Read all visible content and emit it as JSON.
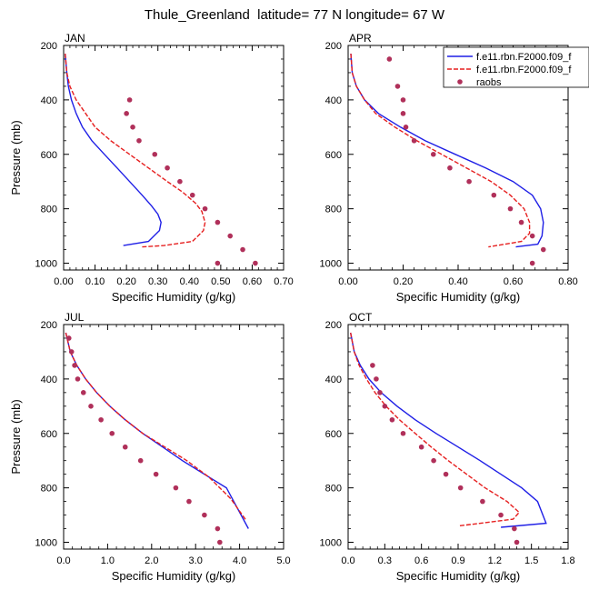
{
  "figure": {
    "title": "Thule_Greenland  latitude= 77 N longitude= 67 W",
    "colors": {
      "model_1": "#1f1fe6",
      "model_2": "#e61f1f",
      "raobs": "#b0305a"
    }
  },
  "chart_data": [
    {
      "type": "line",
      "panel_label": "JAN",
      "xlabel": "Specific Humidity (g/kg)",
      "ylabel": "Pressure (mb)",
      "xlim": [
        0,
        0.7
      ],
      "xticks": [
        "0.00",
        "0.10",
        "0.20",
        "0.30",
        "0.40",
        "0.50",
        "0.60",
        "0.70"
      ],
      "ylim": [
        200,
        1025
      ],
      "yticks": [
        "200",
        "400",
        "600",
        "800",
        "1000"
      ],
      "y_inverted": true,
      "legend": null,
      "series": [
        {
          "style": "solid",
          "color": "#1f1fe6",
          "x": [
            0.005,
            0.01,
            0.015,
            0.025,
            0.04,
            0.06,
            0.09,
            0.13,
            0.17,
            0.21,
            0.25,
            0.28,
            0.3,
            0.31,
            0.305,
            0.27,
            0.19
          ],
          "y": [
            230,
            300,
            350,
            400,
            450,
            500,
            550,
            600,
            650,
            700,
            750,
            790,
            820,
            850,
            880,
            920,
            935
          ]
        },
        {
          "style": "dashed",
          "color": "#e61f1f",
          "x": [
            0.005,
            0.01,
            0.02,
            0.04,
            0.07,
            0.1,
            0.15,
            0.21,
            0.27,
            0.33,
            0.38,
            0.42,
            0.44,
            0.45,
            0.445,
            0.41,
            0.32,
            0.25
          ],
          "y": [
            230,
            300,
            350,
            400,
            450,
            500,
            550,
            600,
            650,
            700,
            740,
            780,
            810,
            850,
            880,
            920,
            935,
            940
          ]
        },
        {
          "style": "markers",
          "color": "#b0305a",
          "x": [
            0.21,
            0.2,
            0.22,
            0.24,
            0.29,
            0.33,
            0.37,
            0.41,
            0.45,
            0.49,
            0.53,
            0.57,
            0.61,
            0.49
          ],
          "y": [
            400,
            450,
            500,
            550,
            600,
            650,
            700,
            750,
            800,
            850,
            900,
            950,
            1000,
            1000
          ]
        }
      ]
    },
    {
      "type": "line",
      "panel_label": "APR",
      "xlabel": "Specific Humidity (g/kg)",
      "ylabel": "",
      "xlim": [
        0,
        0.8
      ],
      "xticks": [
        "0.00",
        "0.20",
        "0.40",
        "0.60",
        "0.80"
      ],
      "ylim": [
        200,
        1025
      ],
      "yticks": [
        "200",
        "400",
        "600",
        "800",
        "1000"
      ],
      "y_inverted": true,
      "legend": {
        "position": "top-right",
        "entries": [
          "f.e11.rbn.F2000.f09_f",
          "f.e11.rbn.F2000.f09_f",
          "raobs"
        ]
      },
      "series": [
        {
          "style": "solid",
          "color": "#1f1fe6",
          "x": [
            0.01,
            0.015,
            0.03,
            0.06,
            0.11,
            0.19,
            0.28,
            0.39,
            0.5,
            0.6,
            0.67,
            0.7,
            0.71,
            0.705,
            0.69,
            0.61
          ],
          "y": [
            230,
            300,
            350,
            400,
            450,
            500,
            550,
            600,
            650,
            700,
            750,
            800,
            850,
            900,
            930,
            940
          ]
        },
        {
          "style": "dashed",
          "color": "#e61f1f",
          "x": [
            0.01,
            0.015,
            0.03,
            0.06,
            0.1,
            0.17,
            0.25,
            0.34,
            0.43,
            0.52,
            0.59,
            0.64,
            0.66,
            0.66,
            0.63,
            0.51
          ],
          "y": [
            230,
            300,
            350,
            400,
            450,
            500,
            550,
            600,
            650,
            700,
            750,
            800,
            850,
            890,
            920,
            940
          ]
        },
        {
          "style": "markers",
          "color": "#b0305a",
          "x": [
            0.15,
            0.18,
            0.2,
            0.2,
            0.21,
            0.24,
            0.31,
            0.37,
            0.44,
            0.53,
            0.59,
            0.63,
            0.67,
            0.71,
            0.67
          ],
          "y": [
            250,
            350,
            400,
            450,
            500,
            550,
            600,
            650,
            700,
            750,
            800,
            850,
            900,
            950,
            1000
          ]
        }
      ]
    },
    {
      "type": "line",
      "panel_label": "JUL",
      "xlabel": "Specific Humidity (g/kg)",
      "ylabel": "Pressure (mb)",
      "xlim": [
        0,
        5.0
      ],
      "xticks": [
        "0.0",
        "1.0",
        "2.0",
        "3.0",
        "4.0",
        "5.0"
      ],
      "ylim": [
        200,
        1025
      ],
      "yticks": [
        "200",
        "400",
        "600",
        "800",
        "1000"
      ],
      "y_inverted": true,
      "legend": null,
      "series": [
        {
          "style": "solid",
          "color": "#1f1fe6",
          "x": [
            0.05,
            0.15,
            0.3,
            0.5,
            0.75,
            1.05,
            1.4,
            1.8,
            2.25,
            2.7,
            3.2,
            3.7,
            4.2
          ],
          "y": [
            230,
            300,
            350,
            400,
            450,
            500,
            550,
            600,
            650,
            700,
            750,
            800,
            950
          ]
        },
        {
          "style": "dashed",
          "color": "#e61f1f",
          "x": [
            0.05,
            0.15,
            0.3,
            0.5,
            0.75,
            1.05,
            1.4,
            1.8,
            2.3,
            2.8,
            3.3,
            3.8,
            4.15
          ],
          "y": [
            230,
            300,
            350,
            400,
            450,
            500,
            550,
            600,
            650,
            700,
            760,
            840,
            920
          ]
        },
        {
          "style": "markers",
          "color": "#b0305a",
          "x": [
            0.12,
            0.18,
            0.25,
            0.32,
            0.45,
            0.62,
            0.85,
            1.1,
            1.4,
            1.75,
            2.1,
            2.55,
            2.85,
            3.2,
            3.5,
            3.55
          ],
          "y": [
            250,
            300,
            350,
            400,
            450,
            500,
            550,
            600,
            650,
            700,
            750,
            800,
            850,
            900,
            950,
            1000
          ]
        }
      ]
    },
    {
      "type": "line",
      "panel_label": "OCT",
      "xlabel": "Specific Humidity (g/kg)",
      "ylabel": "",
      "xlim": [
        0,
        1.8
      ],
      "xticks": [
        "0.0",
        "0.3",
        "0.6",
        "0.9",
        "1.2",
        "1.5",
        "1.8"
      ],
      "ylim": [
        200,
        1025
      ],
      "yticks": [
        "200",
        "400",
        "600",
        "800",
        "1000"
      ],
      "y_inverted": true,
      "legend": null,
      "series": [
        {
          "style": "solid",
          "color": "#1f1fe6",
          "x": [
            0.02,
            0.05,
            0.1,
            0.17,
            0.27,
            0.4,
            0.55,
            0.72,
            0.9,
            1.08,
            1.25,
            1.42,
            1.55,
            1.62,
            1.25
          ],
          "y": [
            230,
            300,
            350,
            400,
            450,
            500,
            550,
            600,
            650,
            700,
            750,
            800,
            850,
            930,
            945
          ]
        },
        {
          "style": "dashed",
          "color": "#e61f1f",
          "x": [
            0.02,
            0.05,
            0.09,
            0.15,
            0.22,
            0.31,
            0.42,
            0.55,
            0.68,
            0.82,
            0.97,
            1.12,
            1.3,
            1.4,
            1.35,
            0.9
          ],
          "y": [
            230,
            300,
            350,
            400,
            450,
            500,
            550,
            600,
            650,
            700,
            750,
            800,
            850,
            890,
            915,
            940
          ]
        },
        {
          "style": "markers",
          "color": "#b0305a",
          "x": [
            0.2,
            0.23,
            0.26,
            0.3,
            0.36,
            0.45,
            0.6,
            0.7,
            0.8,
            0.92,
            1.1,
            1.25,
            1.36,
            1.38
          ],
          "y": [
            350,
            400,
            450,
            500,
            550,
            600,
            650,
            700,
            750,
            800,
            850,
            900,
            950,
            1000
          ]
        }
      ]
    }
  ]
}
